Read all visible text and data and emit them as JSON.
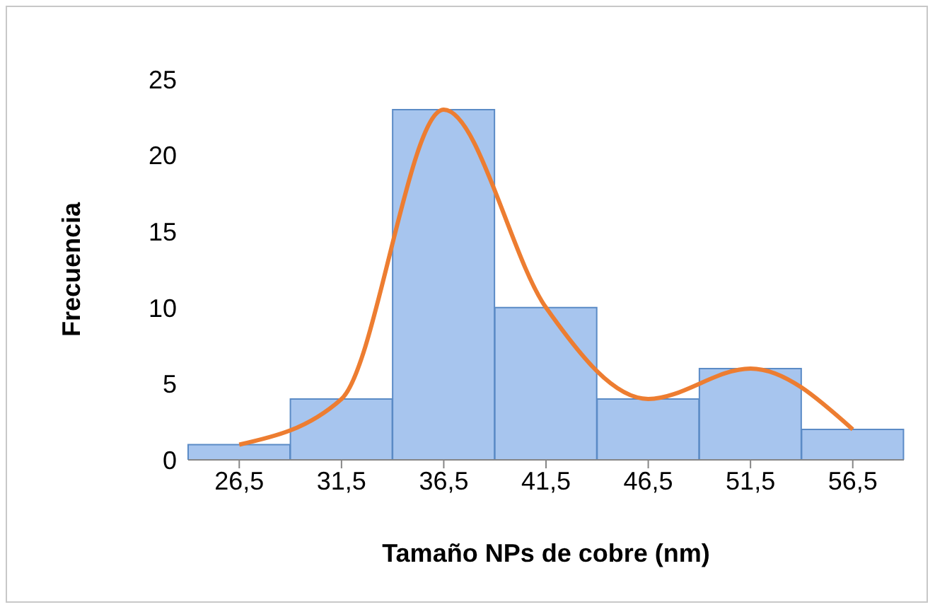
{
  "chart_data": {
    "type": "bar",
    "xlabel": "Tamaño NPs de cobre (nm)",
    "ylabel": "Frecuencia",
    "categories": [
      "26,5",
      "31,5",
      "36,5",
      "41,5",
      "46,5",
      "51,5",
      "56,5"
    ],
    "series": [
      {
        "color": "#a7c5ee",
        "values": [
          1,
          4,
          23,
          10,
          4,
          6,
          2
        ]
      },
      {
        "type": "line",
        "color": "#ed7d31",
        "values": [
          1,
          4,
          23,
          10,
          4,
          6,
          2
        ]
      }
    ],
    "ylim": [
      0,
      25
    ],
    "yticks": [
      0,
      5,
      10,
      15,
      20,
      25
    ],
    "grid": false,
    "legend": false,
    "marker": "none",
    "line_style": "solid"
  }
}
